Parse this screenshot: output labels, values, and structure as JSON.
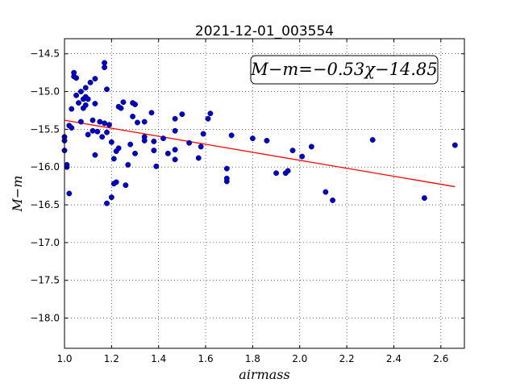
{
  "chart_data": {
    "type": "scatter",
    "title": "2021-12-01_003554",
    "xlabel": "airmass",
    "ylabel": "M−m",
    "xlim": [
      1.0,
      2.7
    ],
    "ylim": [
      -18.4,
      -14.3
    ],
    "y_inverted": true,
    "grid": true,
    "x_ticks": [
      1.0,
      1.2,
      1.4,
      1.6,
      1.8,
      2.0,
      2.2,
      2.4,
      2.6
    ],
    "x_tick_labels": [
      "1.0",
      "1.2",
      "1.4",
      "1.6",
      "1.8",
      "2.0",
      "2.2",
      "2.4",
      "2.6"
    ],
    "y_ticks": [
      -14.5,
      -15.0,
      -15.5,
      -16.0,
      -16.5,
      -17.0,
      -17.5,
      -18.0
    ],
    "y_tick_labels": [
      "−14.5",
      "−15.0",
      "−15.5",
      "−16.0",
      "−16.5",
      "−17.0",
      "−17.5",
      "−18.0"
    ],
    "annotation": "M−m=−0.53χ−14.85",
    "fit": {
      "slope": -0.53,
      "intercept": -14.85,
      "x_range": [
        1.0,
        2.66
      ],
      "color": "#ff0000"
    },
    "point_color": "#0000cc",
    "points": [
      [
        1.0,
        -15.65
      ],
      [
        1.0,
        -15.6
      ],
      [
        1.0,
        -15.78
      ],
      [
        1.01,
        -16.0
      ],
      [
        1.01,
        -15.97
      ],
      [
        1.02,
        -15.45
      ],
      [
        1.02,
        -16.35
      ],
      [
        1.03,
        -15.23
      ],
      [
        1.03,
        -15.48
      ],
      [
        1.04,
        -14.75
      ],
      [
        1.04,
        -14.8
      ],
      [
        1.05,
        -14.82
      ],
      [
        1.05,
        -15.05
      ],
      [
        1.06,
        -15.15
      ],
      [
        1.07,
        -15.0
      ],
      [
        1.07,
        -15.4
      ],
      [
        1.08,
        -15.22
      ],
      [
        1.08,
        -15.1
      ],
      [
        1.09,
        -14.95
      ],
      [
        1.09,
        -15.07
      ],
      [
        1.09,
        -15.18
      ],
      [
        1.1,
        -15.1
      ],
      [
        1.1,
        -15.57
      ],
      [
        1.11,
        -14.88
      ],
      [
        1.12,
        -15.52
      ],
      [
        1.12,
        -15.38
      ],
      [
        1.13,
        -14.83
      ],
      [
        1.13,
        -15.16
      ],
      [
        1.13,
        -15.84
      ],
      [
        1.14,
        -15.53
      ],
      [
        1.15,
        -15.4
      ],
      [
        1.16,
        -15.6
      ],
      [
        1.17,
        -14.62
      ],
      [
        1.17,
        -14.68
      ],
      [
        1.17,
        -15.42
      ],
      [
        1.18,
        -16.48
      ],
      [
        1.18,
        -15.54
      ],
      [
        1.18,
        -14.97
      ],
      [
        1.19,
        -15.44
      ],
      [
        1.2,
        -15.67
      ],
      [
        1.2,
        -16.4
      ],
      [
        1.21,
        -16.22
      ],
      [
        1.21,
        -15.89
      ],
      [
        1.22,
        -16.2
      ],
      [
        1.22,
        -15.79
      ],
      [
        1.23,
        -15.75
      ],
      [
        1.23,
        -15.2
      ],
      [
        1.24,
        -15.22
      ],
      [
        1.25,
        -15.14
      ],
      [
        1.26,
        -16.24
      ],
      [
        1.27,
        -15.97
      ],
      [
        1.28,
        -15.7
      ],
      [
        1.29,
        -15.15
      ],
      [
        1.29,
        -15.33
      ],
      [
        1.3,
        -15.17
      ],
      [
        1.3,
        -15.82
      ],
      [
        1.31,
        -15.41
      ],
      [
        1.34,
        -15.6
      ],
      [
        1.34,
        -15.65
      ],
      [
        1.34,
        -15.4
      ],
      [
        1.37,
        -15.28
      ],
      [
        1.38,
        -15.78
      ],
      [
        1.38,
        -15.66
      ],
      [
        1.39,
        -15.99
      ],
      [
        1.42,
        -15.62
      ],
      [
        1.44,
        -15.82
      ],
      [
        1.47,
        -15.36
      ],
      [
        1.47,
        -15.52
      ],
      [
        1.47,
        -15.77
      ],
      [
        1.47,
        -15.9
      ],
      [
        1.5,
        -15.3
      ],
      [
        1.53,
        -15.68
      ],
      [
        1.57,
        -15.88
      ],
      [
        1.58,
        -15.73
      ],
      [
        1.59,
        -15.56
      ],
      [
        1.61,
        -15.36
      ],
      [
        1.62,
        -15.29
      ],
      [
        1.69,
        -16.19
      ],
      [
        1.69,
        -16.15
      ],
      [
        1.69,
        -16.02
      ],
      [
        1.71,
        -15.58
      ],
      [
        1.8,
        -15.62
      ],
      [
        1.86,
        -15.65
      ],
      [
        1.9,
        -16.08
      ],
      [
        1.94,
        -16.08
      ],
      [
        1.95,
        -16.05
      ],
      [
        1.97,
        -15.78
      ],
      [
        2.01,
        -15.86
      ],
      [
        2.05,
        -15.73
      ],
      [
        2.11,
        -16.33
      ],
      [
        2.14,
        -16.44
      ],
      [
        2.31,
        -15.64
      ],
      [
        2.53,
        -16.41
      ],
      [
        2.66,
        -15.71
      ]
    ]
  }
}
